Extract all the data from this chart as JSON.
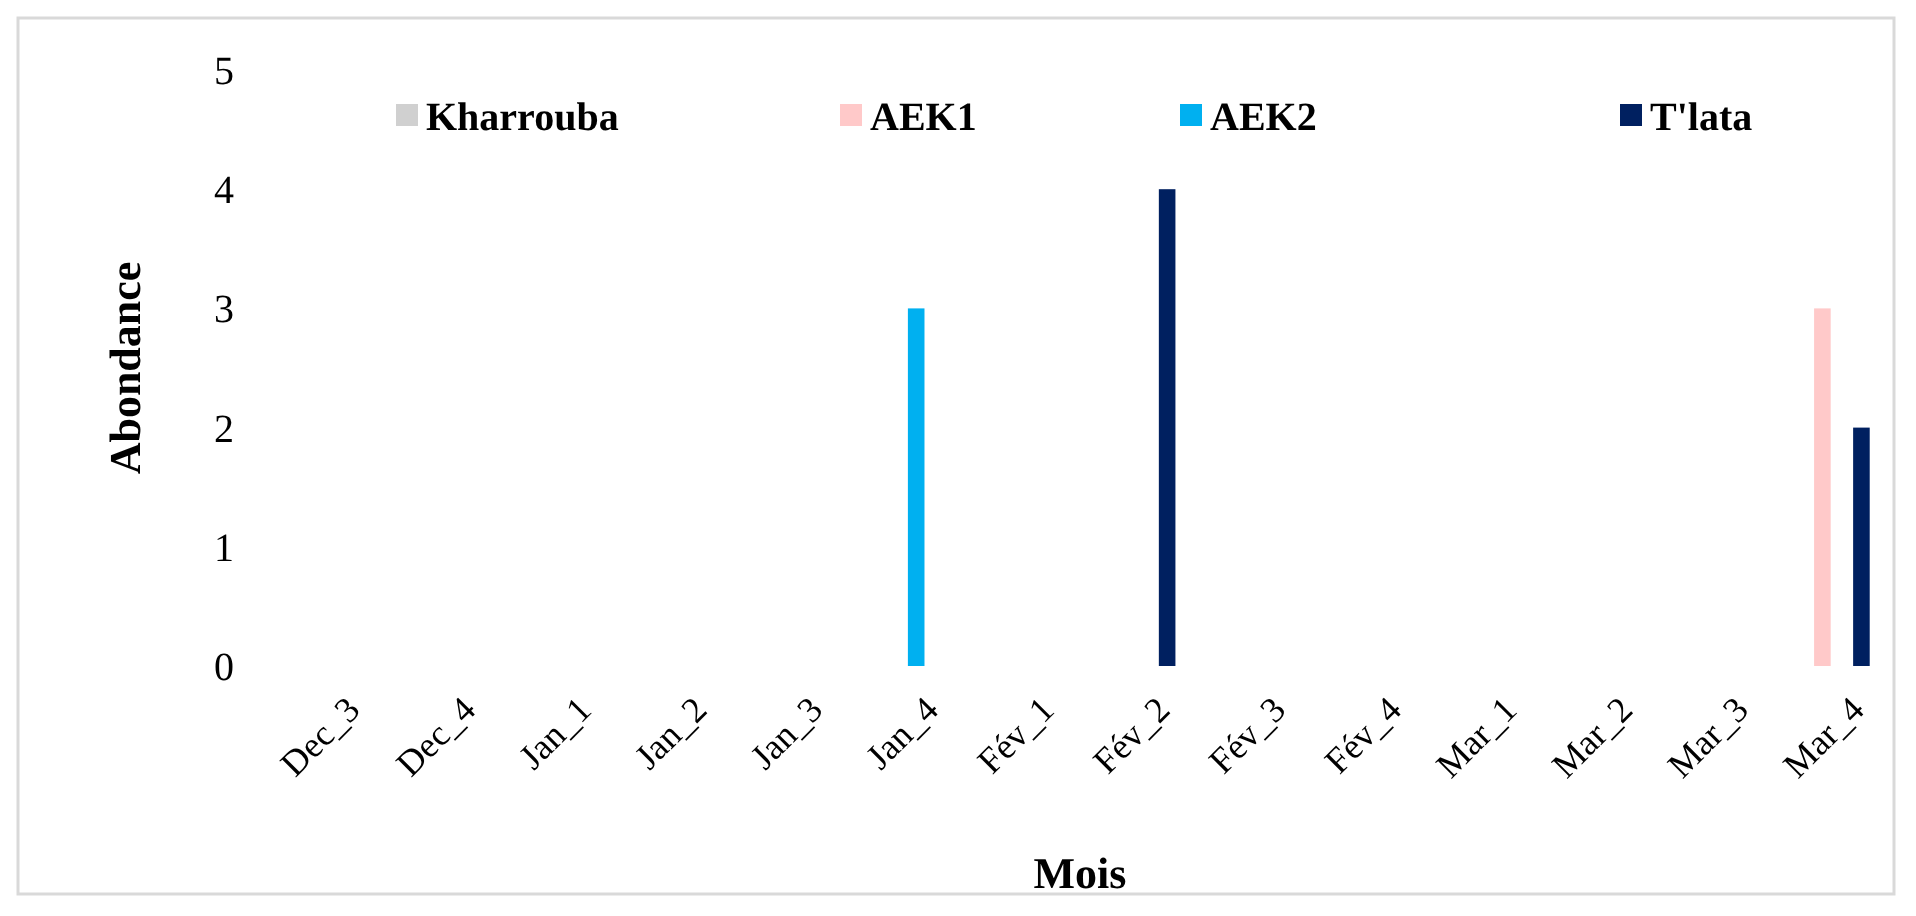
{
  "chart_data": {
    "type": "bar",
    "xlabel": "Mois",
    "ylabel": "Abondance",
    "categories": [
      "Dec_3",
      "Dec_4",
      "Jan_1",
      "Jan_2",
      "Jan_3",
      "Jan_4",
      "Fév_1",
      "Fév_2",
      "Fév_3",
      "Fév_4",
      "Mar_1",
      "Mar_2",
      "Mar_3",
      "Mar_4"
    ],
    "series": [
      {
        "name": "Kharrouba",
        "color": "#d0d0d0",
        "values": [
          0,
          0,
          0,
          0,
          0,
          0,
          0,
          0,
          0,
          0,
          0,
          0,
          0,
          0
        ]
      },
      {
        "name": "AEK1",
        "color": "#ffc9c9",
        "values": [
          0,
          0,
          0,
          0,
          0,
          0,
          0,
          0,
          0,
          0,
          0,
          0,
          0,
          3
        ]
      },
      {
        "name": "AEK2",
        "color": "#00b0f0",
        "values": [
          0,
          0,
          0,
          0,
          0,
          3,
          0,
          0,
          0,
          0,
          0,
          0,
          0,
          0
        ]
      },
      {
        "name": "T'lata",
        "color": "#002060",
        "values": [
          0,
          0,
          0,
          0,
          0,
          0,
          0,
          4,
          0,
          0,
          0,
          0,
          0,
          2
        ]
      }
    ],
    "ylim": [
      0,
      5
    ],
    "yticks": [
      0,
      1,
      2,
      3,
      4,
      5
    ],
    "grid": false,
    "legend": "top"
  }
}
